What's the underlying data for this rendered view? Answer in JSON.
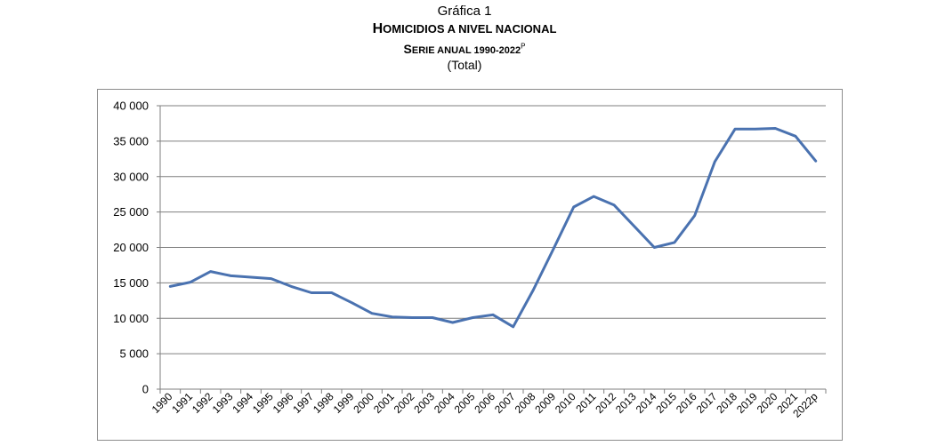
{
  "header": {
    "label": "Gráfica 1",
    "title_first": "H",
    "title_rest": "OMICIDIOS A NIVEL NACIONAL",
    "subtitle_first": "S",
    "subtitle_rest": "ERIE ANUAL 1990-2022",
    "subtitle_sup": "P",
    "unit": "(Total)"
  },
  "chart_data": {
    "type": "line",
    "title": "HOMICIDIOS A NIVEL NACIONAL",
    "subtitle": "SERIE ANUAL 1990-2022P",
    "xlabel": "",
    "ylabel": "",
    "ylim": [
      0,
      40000
    ],
    "yticks": [
      0,
      5000,
      10000,
      15000,
      20000,
      25000,
      30000,
      35000,
      40000
    ],
    "ytick_labels": [
      "0",
      "5 000",
      "10 000",
      "15 000",
      "20 000",
      "25 000",
      "30 000",
      "35 000",
      "40 000"
    ],
    "grid": true,
    "line_color": "#4a72b0",
    "categories": [
      "1990",
      "1991",
      "1992",
      "1993",
      "1994",
      "1995",
      "1996",
      "1997",
      "1998",
      "1999",
      "2000",
      "2001",
      "2002",
      "2003",
      "2004",
      "2005",
      "2006",
      "2007",
      "2008",
      "2009",
      "2010",
      "2011",
      "2012",
      "2013",
      "2014",
      "2015",
      "2016",
      "2017",
      "2018",
      "2019",
      "2020",
      "2021",
      "2022p"
    ],
    "values": [
      14500,
      15100,
      16600,
      16000,
      15800,
      15600,
      14500,
      13600,
      13600,
      12200,
      10700,
      10200,
      10100,
      10100,
      9400,
      10100,
      10500,
      8800,
      14000,
      19800,
      25700,
      27200,
      26000,
      23000,
      20000,
      20700,
      24500,
      32100,
      36700,
      36700,
      36800,
      35700,
      32200
    ]
  }
}
